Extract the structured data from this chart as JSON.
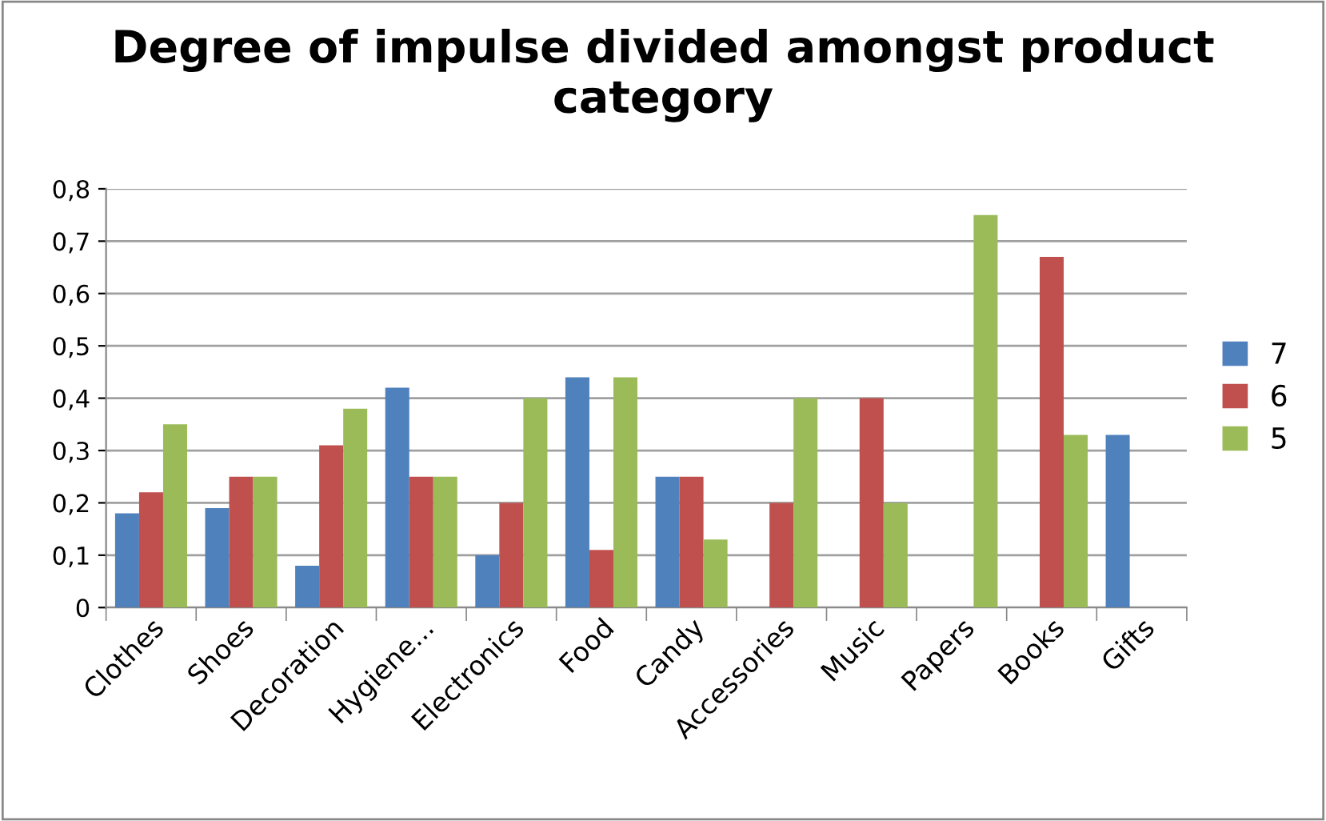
{
  "chart_data": {
    "type": "bar",
    "title": "Degree of impulse divided amongst product category",
    "categories": [
      "Clothes",
      "Shoes",
      "Decoration",
      "Hygiene...",
      "Electronics",
      "Food",
      "Candy",
      "Accessories",
      "Music",
      "Papers",
      "Books",
      "Gifts"
    ],
    "series": [
      {
        "name": "7",
        "color": "#4f81bd",
        "values": [
          0.18,
          0.19,
          0.08,
          0.42,
          0.1,
          0.44,
          0.25,
          null,
          null,
          null,
          null,
          0.33
        ]
      },
      {
        "name": "6",
        "color": "#c0504d",
        "values": [
          0.22,
          0.25,
          0.31,
          0.25,
          0.2,
          0.11,
          0.25,
          0.2,
          0.4,
          null,
          0.67,
          null
        ]
      },
      {
        "name": "5",
        "color": "#9bbb59",
        "values": [
          0.35,
          0.25,
          0.38,
          0.25,
          0.4,
          0.44,
          0.13,
          0.4,
          0.2,
          0.75,
          0.33,
          null
        ]
      }
    ],
    "ylim": [
      0,
      0.8
    ],
    "yticks": [
      {
        "value": 0,
        "label": "0"
      },
      {
        "value": 0.1,
        "label": "0,1"
      },
      {
        "value": 0.2,
        "label": "0,2"
      },
      {
        "value": 0.3,
        "label": "0,3"
      },
      {
        "value": 0.4,
        "label": "0,4"
      },
      {
        "value": 0.5,
        "label": "0,5"
      },
      {
        "value": 0.6,
        "label": "0,6"
      },
      {
        "value": 0.7,
        "label": "0,7"
      },
      {
        "value": 0.8,
        "label": "0,8"
      }
    ],
    "grid": "y",
    "legend": "right"
  }
}
